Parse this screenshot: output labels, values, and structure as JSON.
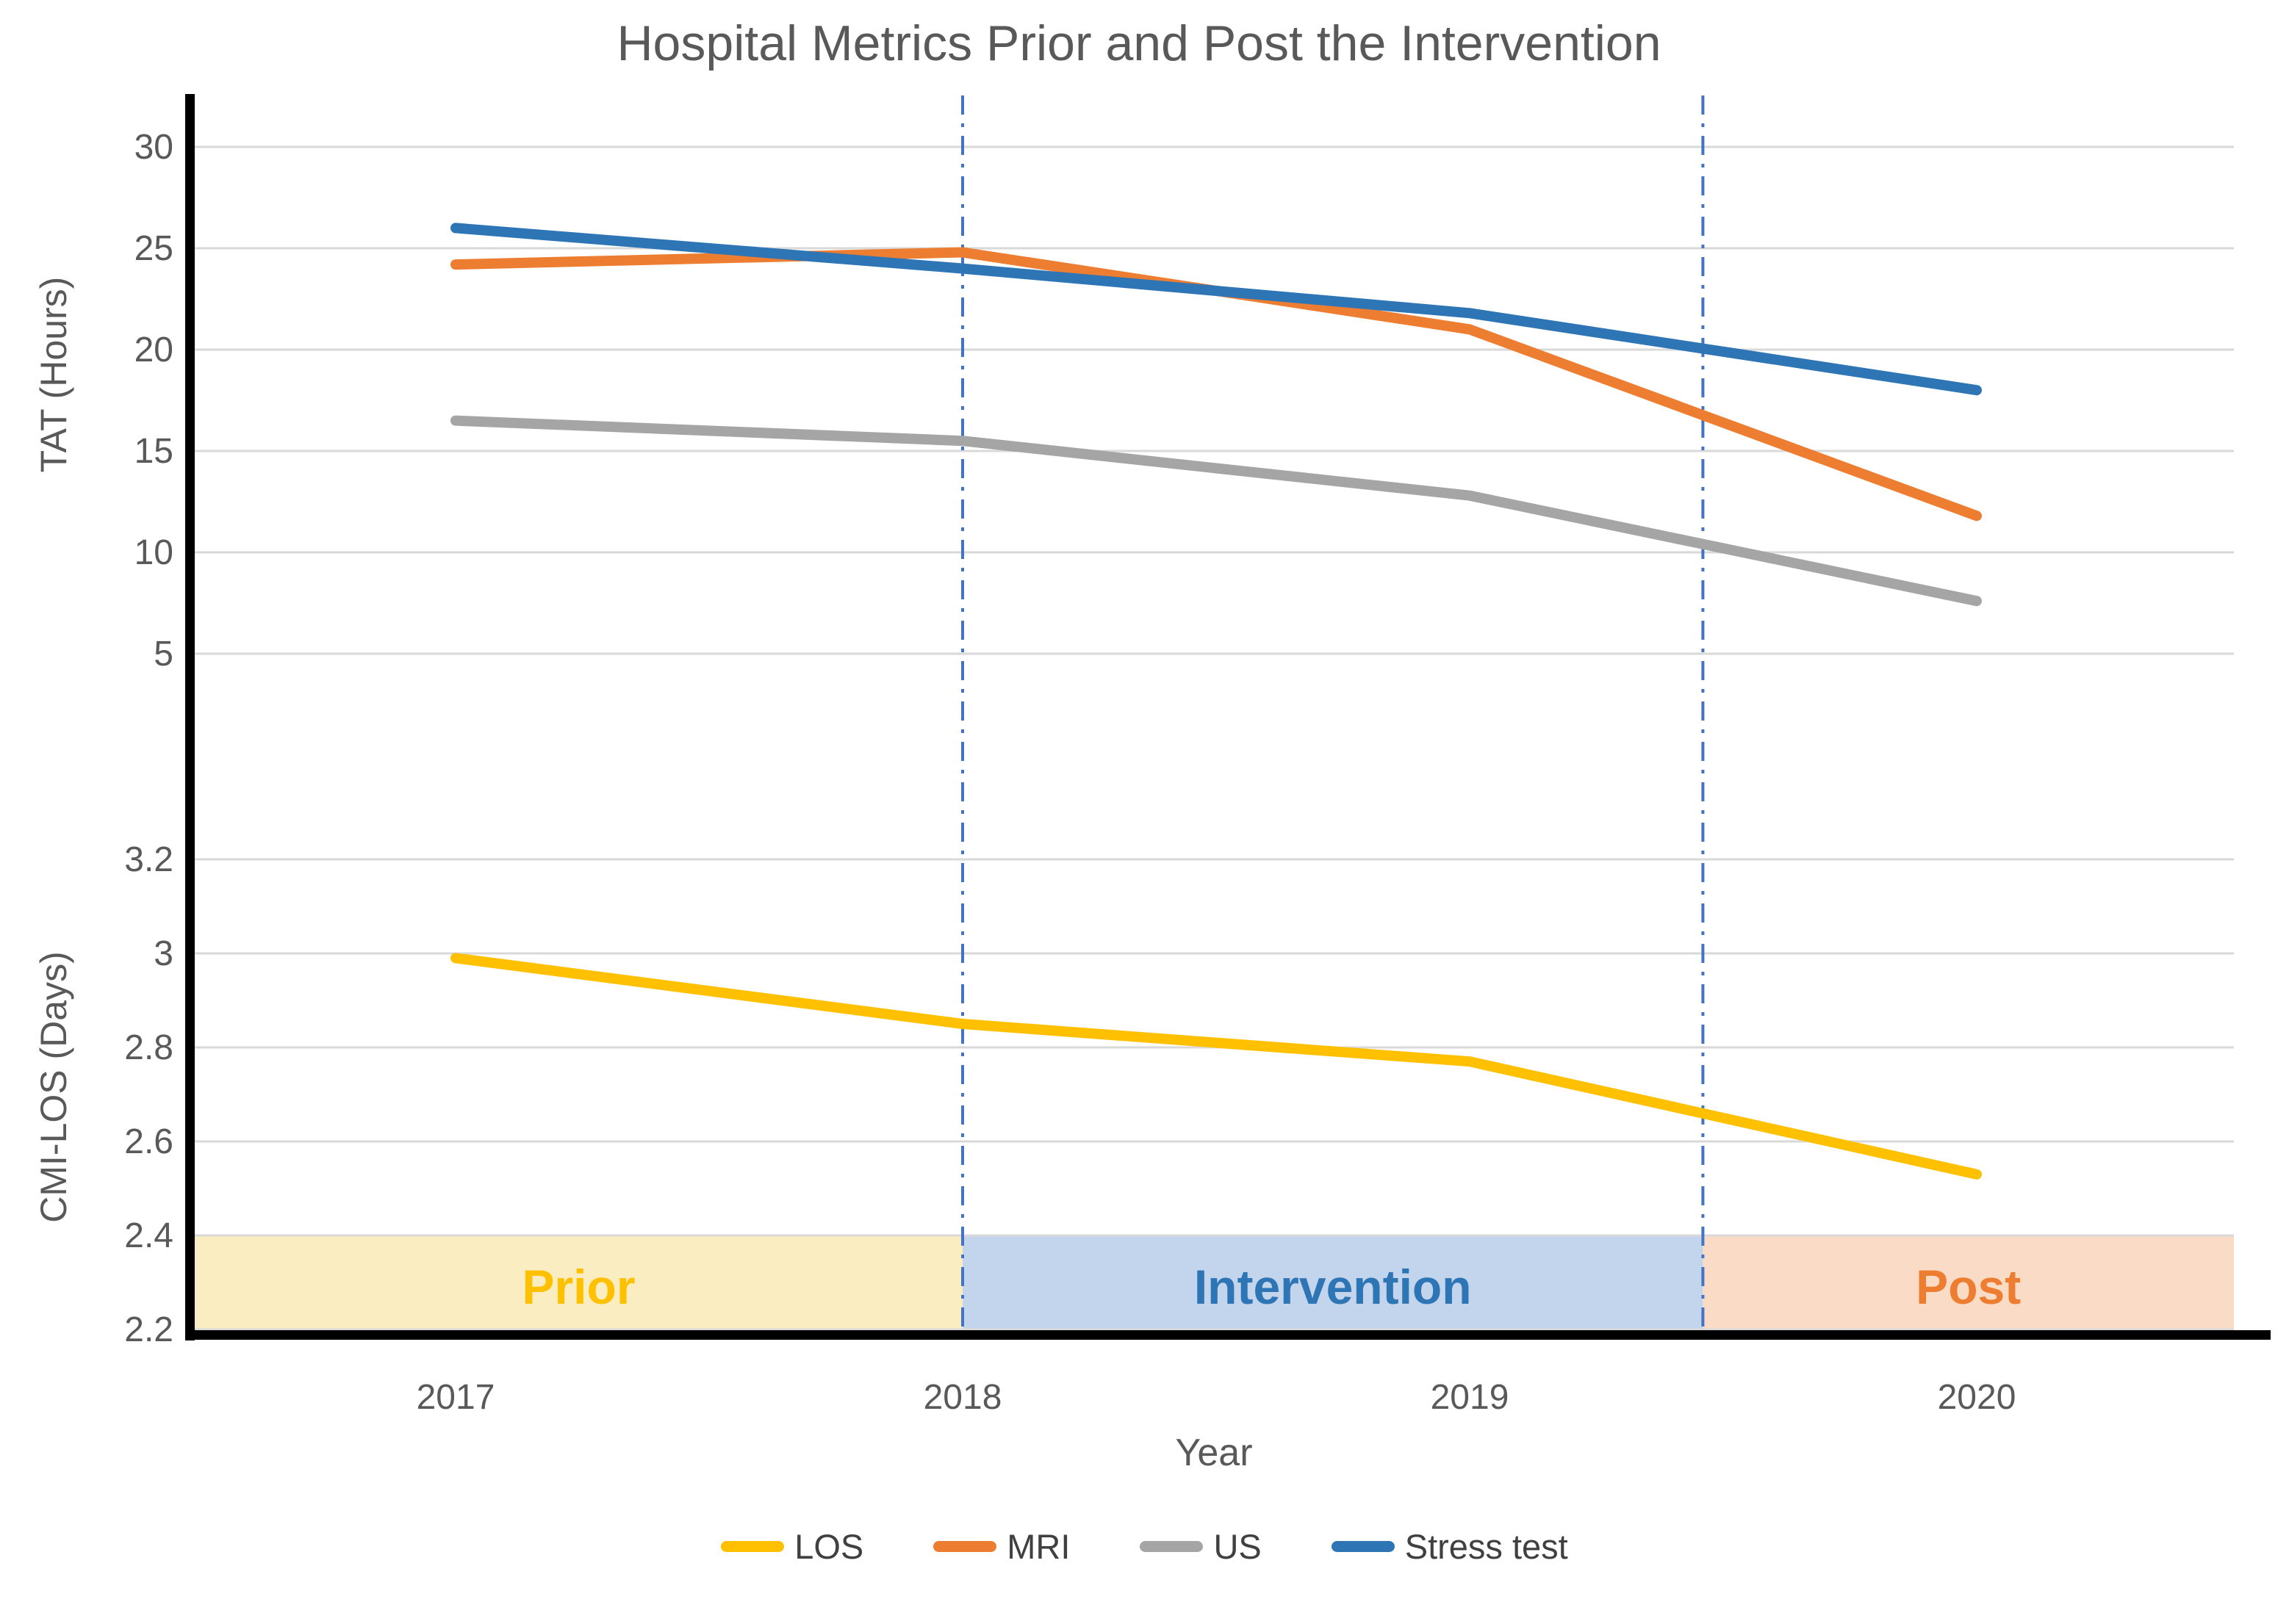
{
  "title": "Hospital Metrics Prior and Post the Intervention",
  "colors": {
    "title_text": "#595959",
    "tick_text": "#595959",
    "axis_line": "#000000",
    "gridline": "#d9d9d9",
    "divider_line": "#4472c4",
    "legend_text": "#404040"
  },
  "chart_data": {
    "type": "line",
    "title": "Hospital Metrics Prior and Post the Intervention",
    "categories": [
      2017,
      2018,
      2019,
      2020
    ],
    "xlabel": "Year",
    "grid": true,
    "legend_position": "bottom",
    "axes": {
      "tat": {
        "label": "TAT (Hours)",
        "ticks": [
          30,
          25,
          20,
          15,
          10,
          5
        ]
      },
      "cmi": {
        "label": "CMI-LOS (Days)",
        "ticks": [
          3.2,
          3,
          2.8,
          2.6,
          2.4,
          2.2
        ]
      }
    },
    "series": [
      {
        "name": "LOS",
        "axis": "cmi",
        "color": "#FFC000",
        "values": [
          2.99,
          2.85,
          2.77,
          2.53
        ]
      },
      {
        "name": "MRI",
        "axis": "tat",
        "color": "#ED7D31",
        "values": [
          24.2,
          24.8,
          21.0,
          11.8
        ]
      },
      {
        "name": "US",
        "axis": "tat",
        "color": "#A5A5A5",
        "values": [
          16.5,
          15.5,
          12.8,
          7.6
        ]
      },
      {
        "name": "Stress test",
        "axis": "tat",
        "color": "#2E75B6",
        "values": [
          26.0,
          24.0,
          21.8,
          18.0
        ]
      }
    ],
    "phases": [
      {
        "label": "Prior",
        "start_year": null,
        "end_year": 2018,
        "band_color": "#FBEDC2",
        "label_color": "#FFC000"
      },
      {
        "label": "Intervention",
        "start_year": 2018,
        "end_year": 2019.46,
        "band_color": "#C3D5EC",
        "label_color": "#2E75B6"
      },
      {
        "label": "Post",
        "start_year": 2019.46,
        "end_year": null,
        "band_color": "#FADCC6",
        "label_color": "#ED7D31"
      }
    ],
    "divider_style": "vertical blue dash-dot lines at phase boundaries"
  }
}
